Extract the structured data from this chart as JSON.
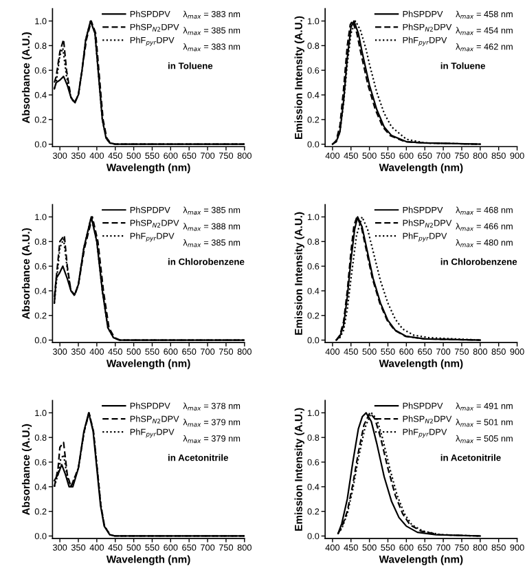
{
  "chart_data": [
    {
      "type": "line",
      "xlabel": "Wavelength (nm)",
      "ylabel": "Absorbance (A.U.)",
      "xlim": [
        280,
        800
      ],
      "xticks": [
        300,
        350,
        400,
        450,
        500,
        550,
        600,
        650,
        700,
        750,
        800
      ],
      "ylim": [
        -0.02,
        1.1
      ],
      "yticks": [
        {
          "value": 0,
          "label": "0.0"
        },
        {
          "value": 0.2,
          "label": "0.2"
        },
        {
          "value": 0.4,
          "label": "0.4"
        },
        {
          "value": 0.6,
          "label": "0.6"
        },
        {
          "value": 0.8,
          "label": "0.8"
        },
        {
          "value": 1.0,
          "label": "1.0"
        }
      ],
      "legend": "top",
      "grid": false,
      "annotations": [
        "λ$_{max}$ = 383 nm",
        "λ$_{max}$ = 385 nm",
        "λ$_{max}$ = 383 nm",
        "in Toluene"
      ],
      "series": [
        {
          "name": "PhSPDPV",
          "color": "#000000",
          "line_style": "solid",
          "x": [
            285,
            290,
            300,
            310,
            320,
            330,
            340,
            350,
            360,
            370,
            383,
            395,
            405,
            415,
            425,
            435,
            450,
            800
          ],
          "values": [
            0.45,
            0.5,
            0.52,
            0.55,
            0.48,
            0.38,
            0.34,
            0.4,
            0.6,
            0.85,
            1.0,
            0.9,
            0.55,
            0.2,
            0.05,
            0.01,
            0,
            0
          ]
        },
        {
          "name": "PhSP$_{N2}$DPV",
          "color": "#000000",
          "line_style": "dashed",
          "x": [
            285,
            290,
            300,
            310,
            318,
            330,
            340,
            350,
            360,
            372,
            385,
            397,
            407,
            417,
            427,
            437,
            450,
            800
          ],
          "values": [
            0.5,
            0.55,
            0.75,
            0.85,
            0.6,
            0.38,
            0.33,
            0.4,
            0.6,
            0.85,
            1.0,
            0.9,
            0.55,
            0.2,
            0.05,
            0.01,
            0,
            0
          ]
        },
        {
          "name": "PhF$_{pyr}$DPV",
          "color": "#000000",
          "line_style": "dotted",
          "x": [
            285,
            290,
            300,
            308,
            318,
            330,
            340,
            350,
            360,
            370,
            383,
            395,
            405,
            415,
            425,
            435,
            450,
            800
          ],
          "values": [
            0.45,
            0.5,
            0.72,
            0.78,
            0.55,
            0.38,
            0.34,
            0.4,
            0.6,
            0.85,
            1.0,
            0.9,
            0.55,
            0.2,
            0.05,
            0.01,
            0,
            0
          ]
        }
      ]
    },
    {
      "type": "line",
      "xlabel": "Wavelength (nm)",
      "ylabel": "Emission Intensity (A.U.)",
      "xlim": [
        380,
        900
      ],
      "xticks": [
        400,
        450,
        500,
        550,
        600,
        650,
        700,
        750,
        800,
        850,
        900
      ],
      "ylim": [
        -0.02,
        1.1
      ],
      "yticks": [
        {
          "value": 0,
          "label": "0.0"
        },
        {
          "value": 0.2,
          "label": "0.2"
        },
        {
          "value": 0.4,
          "label": "0.4"
        },
        {
          "value": 0.6,
          "label": "0.6"
        },
        {
          "value": 0.8,
          "label": "0.8"
        },
        {
          "value": 1.0,
          "label": "1.0"
        }
      ],
      "legend": "top",
      "grid": false,
      "annotations": [
        "λ$_{max}$ = 458 nm",
        "λ$_{max}$ = 454 nm",
        "λ$_{max}$ = 462 nm",
        "in Toluene"
      ],
      "series": [
        {
          "name": "PhSPDPV",
          "color": "#000000",
          "line_style": "solid",
          "x": [
            400,
            410,
            420,
            430,
            440,
            450,
            458,
            470,
            480,
            500,
            520,
            540,
            560,
            600,
            650,
            800
          ],
          "values": [
            0,
            0.02,
            0.1,
            0.35,
            0.7,
            0.95,
            1.0,
            0.9,
            0.75,
            0.48,
            0.28,
            0.14,
            0.07,
            0.02,
            0.01,
            0
          ]
        },
        {
          "name": "PhSP$_{N2}$DPV",
          "color": "#000000",
          "line_style": "dashed",
          "x": [
            400,
            410,
            420,
            430,
            440,
            448,
            454,
            466,
            476,
            496,
            516,
            536,
            556,
            596,
            646,
            800
          ],
          "values": [
            0,
            0.03,
            0.15,
            0.45,
            0.8,
            0.97,
            1.0,
            0.9,
            0.75,
            0.48,
            0.28,
            0.14,
            0.07,
            0.02,
            0.01,
            0
          ]
        },
        {
          "name": "PhF$_{pyr}$DPV",
          "color": "#000000",
          "line_style": "dotted",
          "x": [
            400,
            410,
            420,
            430,
            440,
            450,
            462,
            475,
            490,
            500,
            520,
            540,
            560,
            600,
            650,
            800
          ],
          "values": [
            0,
            0.02,
            0.1,
            0.33,
            0.65,
            0.9,
            1.0,
            0.93,
            0.78,
            0.65,
            0.42,
            0.25,
            0.14,
            0.04,
            0.01,
            0
          ]
        }
      ]
    },
    {
      "type": "line",
      "xlabel": "Wavelength (nm)",
      "ylabel": "Absorbance (A.U.)",
      "xlim": [
        280,
        800
      ],
      "xticks": [
        300,
        350,
        400,
        450,
        500,
        550,
        600,
        650,
        700,
        750,
        800
      ],
      "ylim": [
        -0.02,
        1.1
      ],
      "yticks": [
        {
          "value": 0,
          "label": "0.0"
        },
        {
          "value": 0.2,
          "label": "0.2"
        },
        {
          "value": 0.4,
          "label": "0.4"
        },
        {
          "value": 0.6,
          "label": "0.6"
        },
        {
          "value": 0.8,
          "label": "0.8"
        },
        {
          "value": 1.0,
          "label": "1.0"
        }
      ],
      "legend": "top",
      "grid": false,
      "annotations": [
        "λ$_{max}$ = 385 nm",
        "λ$_{max}$ = 388 nm",
        "λ$_{max}$ = 385 nm",
        "in Chlorobenzene"
      ],
      "series": [
        {
          "name": "PhSPDPV",
          "color": "#000000",
          "line_style": "solid",
          "x": [
            285,
            290,
            300,
            308,
            320,
            330,
            340,
            350,
            365,
            385,
            400,
            415,
            430,
            445,
            460,
            800
          ],
          "values": [
            0.3,
            0.5,
            0.55,
            0.6,
            0.5,
            0.4,
            0.37,
            0.45,
            0.75,
            1.0,
            0.8,
            0.4,
            0.1,
            0.02,
            0,
            0
          ]
        },
        {
          "name": "PhSP$_{N2}$DPV",
          "color": "#000000",
          "line_style": "dashed",
          "x": [
            285,
            290,
            300,
            312,
            320,
            330,
            340,
            350,
            367,
            388,
            403,
            418,
            433,
            448,
            463,
            800
          ],
          "values": [
            0.35,
            0.5,
            0.8,
            0.85,
            0.6,
            0.4,
            0.36,
            0.45,
            0.75,
            1.0,
            0.8,
            0.4,
            0.1,
            0.02,
            0,
            0
          ]
        },
        {
          "name": "PhF$_{pyr}$DPV",
          "color": "#000000",
          "line_style": "dotted",
          "x": [
            285,
            290,
            300,
            310,
            320,
            330,
            340,
            350,
            365,
            385,
            400,
            415,
            430,
            445,
            460,
            800
          ],
          "values": [
            0.3,
            0.45,
            0.75,
            0.82,
            0.58,
            0.4,
            0.37,
            0.45,
            0.75,
            1.0,
            0.8,
            0.4,
            0.1,
            0.02,
            0,
            0
          ]
        }
      ]
    },
    {
      "type": "line",
      "xlabel": "Wavelength (nm)",
      "ylabel": "Emission Intensity (A.U.)",
      "xlim": [
        380,
        900
      ],
      "xticks": [
        400,
        450,
        500,
        550,
        600,
        650,
        700,
        750,
        800,
        850,
        900
      ],
      "ylim": [
        -0.02,
        1.1
      ],
      "yticks": [
        {
          "value": 0,
          "label": "0.0"
        },
        {
          "value": 0.2,
          "label": "0.2"
        },
        {
          "value": 0.4,
          "label": "0.4"
        },
        {
          "value": 0.6,
          "label": "0.6"
        },
        {
          "value": 0.8,
          "label": "0.8"
        },
        {
          "value": 1.0,
          "label": "1.0"
        }
      ],
      "legend": "top",
      "grid": false,
      "annotations": [
        "λ$_{max}$ = 468 nm",
        "λ$_{max}$ = 466 nm",
        "λ$_{max}$ = 480 nm",
        "in Chlorobenzene"
      ],
      "series": [
        {
          "name": "PhSPDPV",
          "color": "#000000",
          "line_style": "solid",
          "x": [
            410,
            420,
            430,
            440,
            450,
            460,
            468,
            480,
            490,
            510,
            530,
            550,
            570,
            600,
            650,
            800
          ],
          "values": [
            0,
            0.03,
            0.12,
            0.35,
            0.65,
            0.9,
            1.0,
            0.92,
            0.78,
            0.5,
            0.3,
            0.16,
            0.08,
            0.03,
            0.01,
            0
          ]
        },
        {
          "name": "PhSP$_{N2}$DPV",
          "color": "#000000",
          "line_style": "dashed",
          "x": [
            410,
            420,
            430,
            440,
            450,
            458,
            466,
            478,
            488,
            508,
            528,
            548,
            568,
            598,
            648,
            800
          ],
          "values": [
            0,
            0.04,
            0.15,
            0.4,
            0.72,
            0.93,
            1.0,
            0.92,
            0.78,
            0.5,
            0.3,
            0.16,
            0.08,
            0.03,
            0.01,
            0
          ]
        },
        {
          "name": "PhF$_{pyr}$DPV",
          "color": "#000000",
          "line_style": "dotted",
          "x": [
            410,
            420,
            430,
            440,
            450,
            465,
            480,
            495,
            510,
            530,
            550,
            570,
            590,
            620,
            660,
            800
          ],
          "values": [
            0,
            0.02,
            0.08,
            0.25,
            0.5,
            0.85,
            1.0,
            0.9,
            0.72,
            0.48,
            0.3,
            0.17,
            0.09,
            0.04,
            0.02,
            0
          ]
        }
      ]
    },
    {
      "type": "line",
      "xlabel": "Wavelength (nm)",
      "ylabel": "Absorbance (A.U.)",
      "xlim": [
        280,
        800
      ],
      "xticks": [
        300,
        350,
        400,
        450,
        500,
        550,
        600,
        650,
        700,
        750,
        800
      ],
      "ylim": [
        -0.02,
        1.1
      ],
      "yticks": [
        {
          "value": 0,
          "label": "0.0"
        },
        {
          "value": 0.2,
          "label": "0.2"
        },
        {
          "value": 0.4,
          "label": "0.4"
        },
        {
          "value": 0.6,
          "label": "0.6"
        },
        {
          "value": 0.8,
          "label": "0.8"
        },
        {
          "value": 1.0,
          "label": "1.0"
        }
      ],
      "legend": "top",
      "grid": false,
      "annotations": [
        "λ$_{max}$ = 378 nm",
        "λ$_{max}$ = 379 nm",
        "λ$_{max}$ = 379 nm",
        "in Acetonitrile"
      ],
      "series": [
        {
          "name": "PhSPDPV",
          "color": "#000000",
          "line_style": "solid",
          "x": [
            285,
            295,
            305,
            315,
            325,
            335,
            350,
            365,
            378,
            390,
            400,
            410,
            420,
            435,
            450,
            800
          ],
          "values": [
            0.45,
            0.5,
            0.58,
            0.5,
            0.4,
            0.4,
            0.55,
            0.85,
            1.0,
            0.85,
            0.55,
            0.25,
            0.08,
            0.01,
            0,
            0
          ]
        },
        {
          "name": "PhSP$_{N2}$DPV",
          "color": "#000000",
          "line_style": "dashed",
          "x": [
            285,
            295,
            300,
            310,
            320,
            330,
            350,
            366,
            379,
            391,
            401,
            411,
            421,
            436,
            450,
            800
          ],
          "values": [
            0.4,
            0.55,
            0.72,
            0.76,
            0.5,
            0.4,
            0.55,
            0.85,
            1.0,
            0.85,
            0.55,
            0.25,
            0.08,
            0.01,
            0,
            0
          ]
        },
        {
          "name": "PhF$_{pyr}$DPV",
          "color": "#000000",
          "line_style": "dotted",
          "x": [
            285,
            295,
            302,
            310,
            320,
            330,
            350,
            366,
            379,
            391,
            401,
            411,
            421,
            436,
            450,
            800
          ],
          "values": [
            0.4,
            0.5,
            0.62,
            0.66,
            0.48,
            0.4,
            0.55,
            0.85,
            1.0,
            0.85,
            0.55,
            0.25,
            0.08,
            0.01,
            0,
            0
          ]
        }
      ]
    },
    {
      "type": "line",
      "xlabel": "Wavelength (nm)",
      "ylabel": "Emission Intensity (A.U.)",
      "xlim": [
        380,
        900
      ],
      "xticks": [
        400,
        450,
        500,
        550,
        600,
        650,
        700,
        750,
        800,
        850,
        900
      ],
      "ylim": [
        -0.02,
        1.1
      ],
      "yticks": [
        {
          "value": 0,
          "label": "0.0"
        },
        {
          "value": 0.2,
          "label": "0.2"
        },
        {
          "value": 0.4,
          "label": "0.4"
        },
        {
          "value": 0.6,
          "label": "0.6"
        },
        {
          "value": 0.8,
          "label": "0.8"
        },
        {
          "value": 1.0,
          "label": "1.0"
        }
      ],
      "legend": "top",
      "grid": false,
      "annotations": [
        "λ$_{max}$ = 491 nm",
        "λ$_{max}$ = 501 nm",
        "λ$_{max}$ = 505 nm",
        "in Acetonitrile"
      ],
      "series": [
        {
          "name": "PhSPDPV",
          "color": "#000000",
          "line_style": "solid",
          "x": [
            415,
            425,
            440,
            455,
            470,
            481,
            491,
            505,
            520,
            540,
            560,
            580,
            600,
            630,
            680,
            800
          ],
          "values": [
            0.02,
            0.1,
            0.3,
            0.6,
            0.87,
            0.97,
            1.0,
            0.93,
            0.75,
            0.48,
            0.28,
            0.15,
            0.08,
            0.03,
            0.01,
            0
          ]
        },
        {
          "name": "PhSP$_{N2}$DPV",
          "color": "#000000",
          "line_style": "dashed",
          "x": [
            415,
            425,
            440,
            455,
            470,
            485,
            501,
            515,
            530,
            550,
            570,
            590,
            610,
            640,
            690,
            800
          ],
          "values": [
            0.02,
            0.07,
            0.2,
            0.42,
            0.68,
            0.9,
            1.0,
            0.95,
            0.8,
            0.55,
            0.33,
            0.18,
            0.09,
            0.04,
            0.01,
            0
          ]
        },
        {
          "name": "PhF$_{pyr}$DPV",
          "color": "#000000",
          "line_style": "dotted",
          "x": [
            415,
            425,
            440,
            455,
            470,
            488,
            505,
            520,
            535,
            555,
            575,
            595,
            615,
            645,
            695,
            800
          ],
          "values": [
            0.02,
            0.06,
            0.18,
            0.38,
            0.63,
            0.88,
            1.0,
            0.95,
            0.8,
            0.55,
            0.33,
            0.18,
            0.09,
            0.04,
            0.01,
            0
          ]
        }
      ]
    }
  ]
}
